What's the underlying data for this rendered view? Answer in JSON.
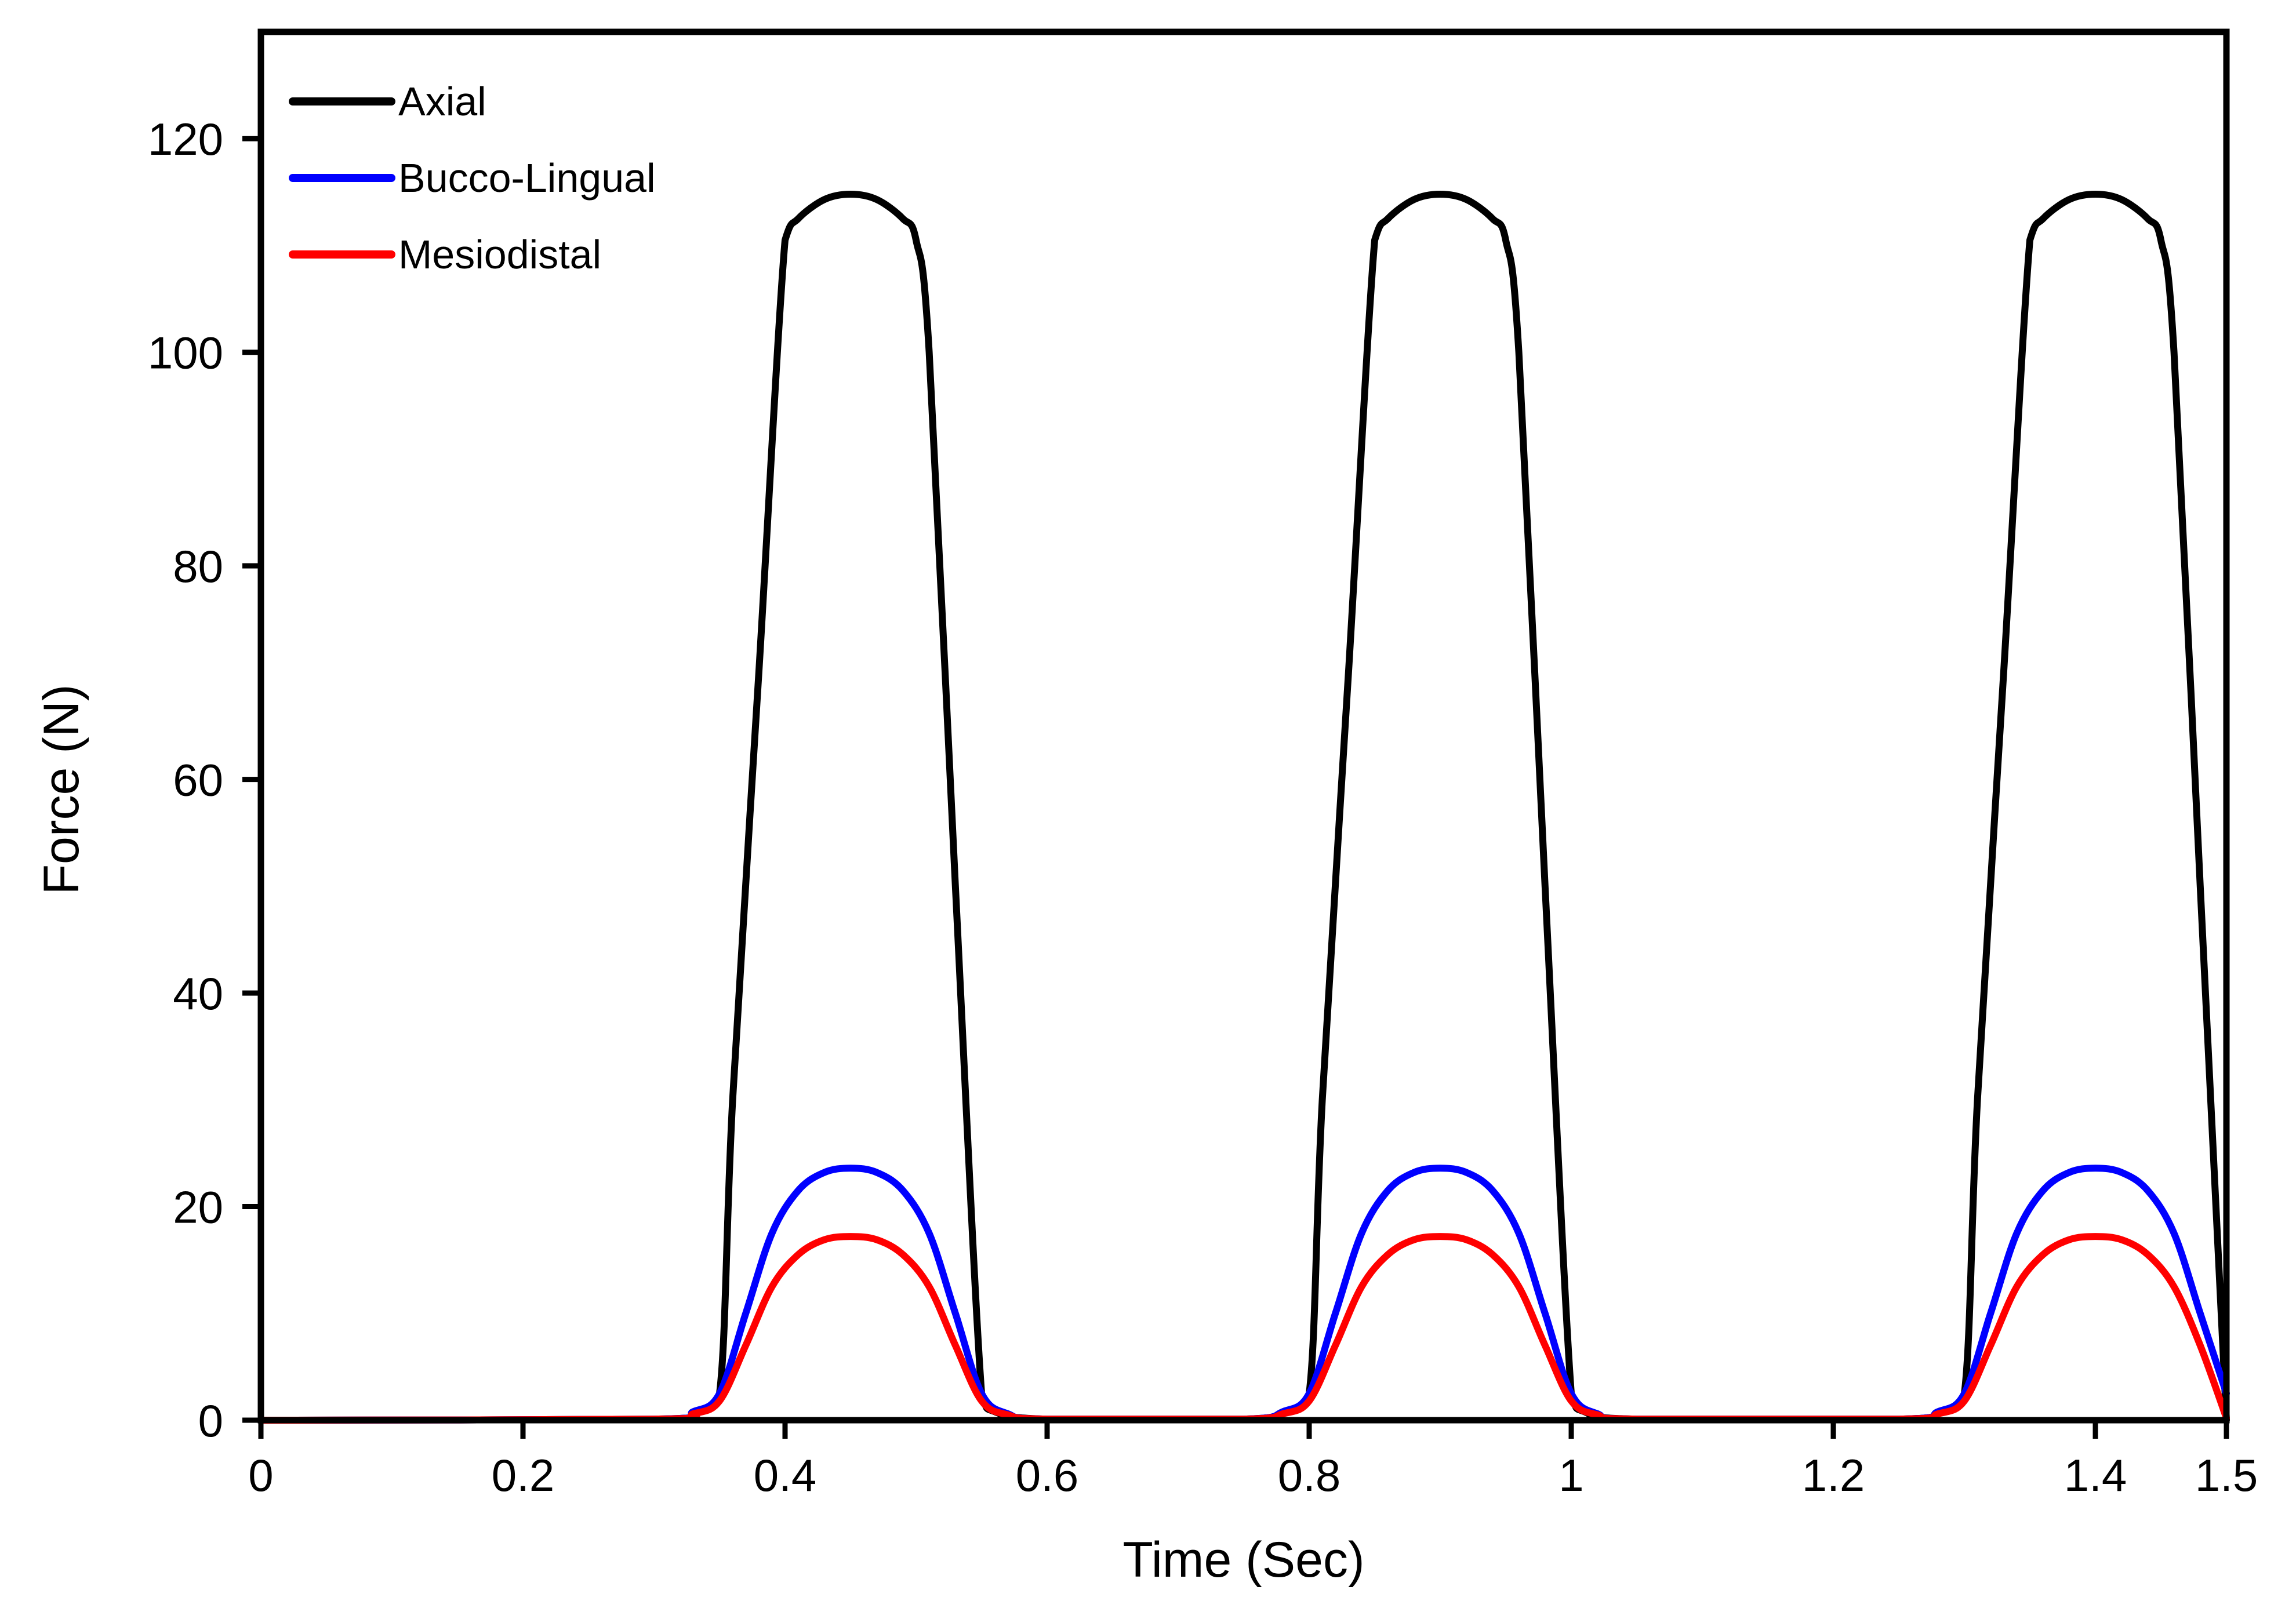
{
  "chart_data": {
    "type": "line",
    "title": "",
    "xlabel": "Time (Sec)",
    "ylabel": "Force (N)",
    "xlim": [
      0,
      1.5
    ],
    "ylim": [
      0,
      130
    ],
    "xticks": [
      0,
      0.2,
      0.4,
      0.6,
      0.8,
      1,
      1.2,
      1.4,
      1.5
    ],
    "xtick_labels": [
      "0",
      "0.2",
      "0.4",
      "0.6",
      "0.8",
      "1",
      "1.2",
      "1.4",
      "1.5"
    ],
    "yticks": [
      0,
      20,
      40,
      60,
      80,
      100,
      120
    ],
    "ytick_labels": [
      "0",
      "20",
      "40",
      "60",
      "80",
      "100",
      "120"
    ],
    "grid": false,
    "legend_position": "top-left",
    "series": [
      {
        "name": "Axial",
        "color": "#000000",
        "x": [
          0,
          0.3,
          0.33,
          0.35,
          0.36,
          0.38,
          0.4,
          0.41,
          0.43,
          0.45,
          0.47,
          0.49,
          0.5,
          0.51,
          0.53,
          0.55,
          0.56,
          0.6,
          0.75,
          0.78,
          0.8,
          0.81,
          0.83,
          0.85,
          0.86,
          0.88,
          0.9,
          0.92,
          0.94,
          0.95,
          0.96,
          0.98,
          1.0,
          1.01,
          1.05,
          1.25,
          1.28,
          1.3,
          1.31,
          1.33,
          1.35,
          1.36,
          1.38,
          1.4,
          1.42,
          1.44,
          1.45,
          1.46,
          1.48,
          1.5
        ],
        "y": [
          0,
          0.1,
          0.8,
          2.5,
          30,
          70,
          110.5,
          112.5,
          114.3,
          114.8,
          114.3,
          112.5,
          110.5,
          100,
          50,
          2.5,
          0.8,
          0.1,
          0.1,
          0.8,
          2.5,
          30,
          70,
          110.5,
          112.5,
          114.3,
          114.8,
          114.3,
          112.5,
          110.5,
          100,
          50,
          2.5,
          0.8,
          0.1,
          0.1,
          0.8,
          2.5,
          30,
          70,
          110.5,
          112.5,
          114.3,
          114.8,
          114.3,
          112.5,
          110.5,
          100,
          50,
          0
        ]
      },
      {
        "name": "Bucco-Lingual",
        "color": "#0000ff",
        "x": [
          0,
          0.3,
          0.33,
          0.35,
          0.37,
          0.39,
          0.41,
          0.43,
          0.45,
          0.47,
          0.49,
          0.51,
          0.53,
          0.55,
          0.57,
          0.6,
          0.75,
          0.78,
          0.8,
          0.82,
          0.84,
          0.86,
          0.88,
          0.9,
          0.92,
          0.94,
          0.96,
          0.98,
          1.0,
          1.02,
          1.05,
          1.25,
          1.28,
          1.3,
          1.32,
          1.34,
          1.36,
          1.38,
          1.4,
          1.42,
          1.44,
          1.46,
          1.48,
          1.5
        ],
        "y": [
          0,
          0.1,
          0.8,
          2.5,
          10,
          17.5,
          21.5,
          23.2,
          23.6,
          23.2,
          21.5,
          17.5,
          10,
          2.5,
          0.6,
          0.1,
          0.1,
          0.8,
          2.5,
          10,
          17.5,
          21.5,
          23.2,
          23.6,
          23.2,
          21.5,
          17.5,
          10,
          2.5,
          0.6,
          0.1,
          0.1,
          0.8,
          2.5,
          10,
          17.5,
          21.5,
          23.2,
          23.6,
          23.2,
          21.5,
          17.5,
          10,
          2.5
        ]
      },
      {
        "name": "Mesiodistal",
        "color": "#ff0000",
        "x": [
          0,
          0.3,
          0.33,
          0.35,
          0.37,
          0.39,
          0.41,
          0.43,
          0.45,
          0.47,
          0.49,
          0.51,
          0.53,
          0.55,
          0.57,
          0.6,
          0.75,
          0.78,
          0.8,
          0.82,
          0.84,
          0.86,
          0.88,
          0.9,
          0.92,
          0.94,
          0.96,
          0.98,
          1.0,
          1.02,
          1.05,
          1.25,
          1.28,
          1.3,
          1.32,
          1.34,
          1.36,
          1.38,
          1.4,
          1.42,
          1.44,
          1.46,
          1.48,
          1.5
        ],
        "y": [
          0,
          0.1,
          0.6,
          1.8,
          7,
          12.5,
          15.5,
          16.9,
          17.2,
          16.9,
          15.5,
          12.5,
          7,
          1.8,
          0.5,
          0.1,
          0.1,
          0.6,
          1.8,
          7,
          12.5,
          15.5,
          16.9,
          17.2,
          16.9,
          15.5,
          12.5,
          7,
          1.8,
          0.5,
          0.1,
          0.1,
          0.6,
          1.8,
          7,
          12.5,
          15.5,
          16.9,
          17.2,
          16.9,
          15.5,
          12.5,
          7,
          0.2
        ]
      }
    ]
  }
}
